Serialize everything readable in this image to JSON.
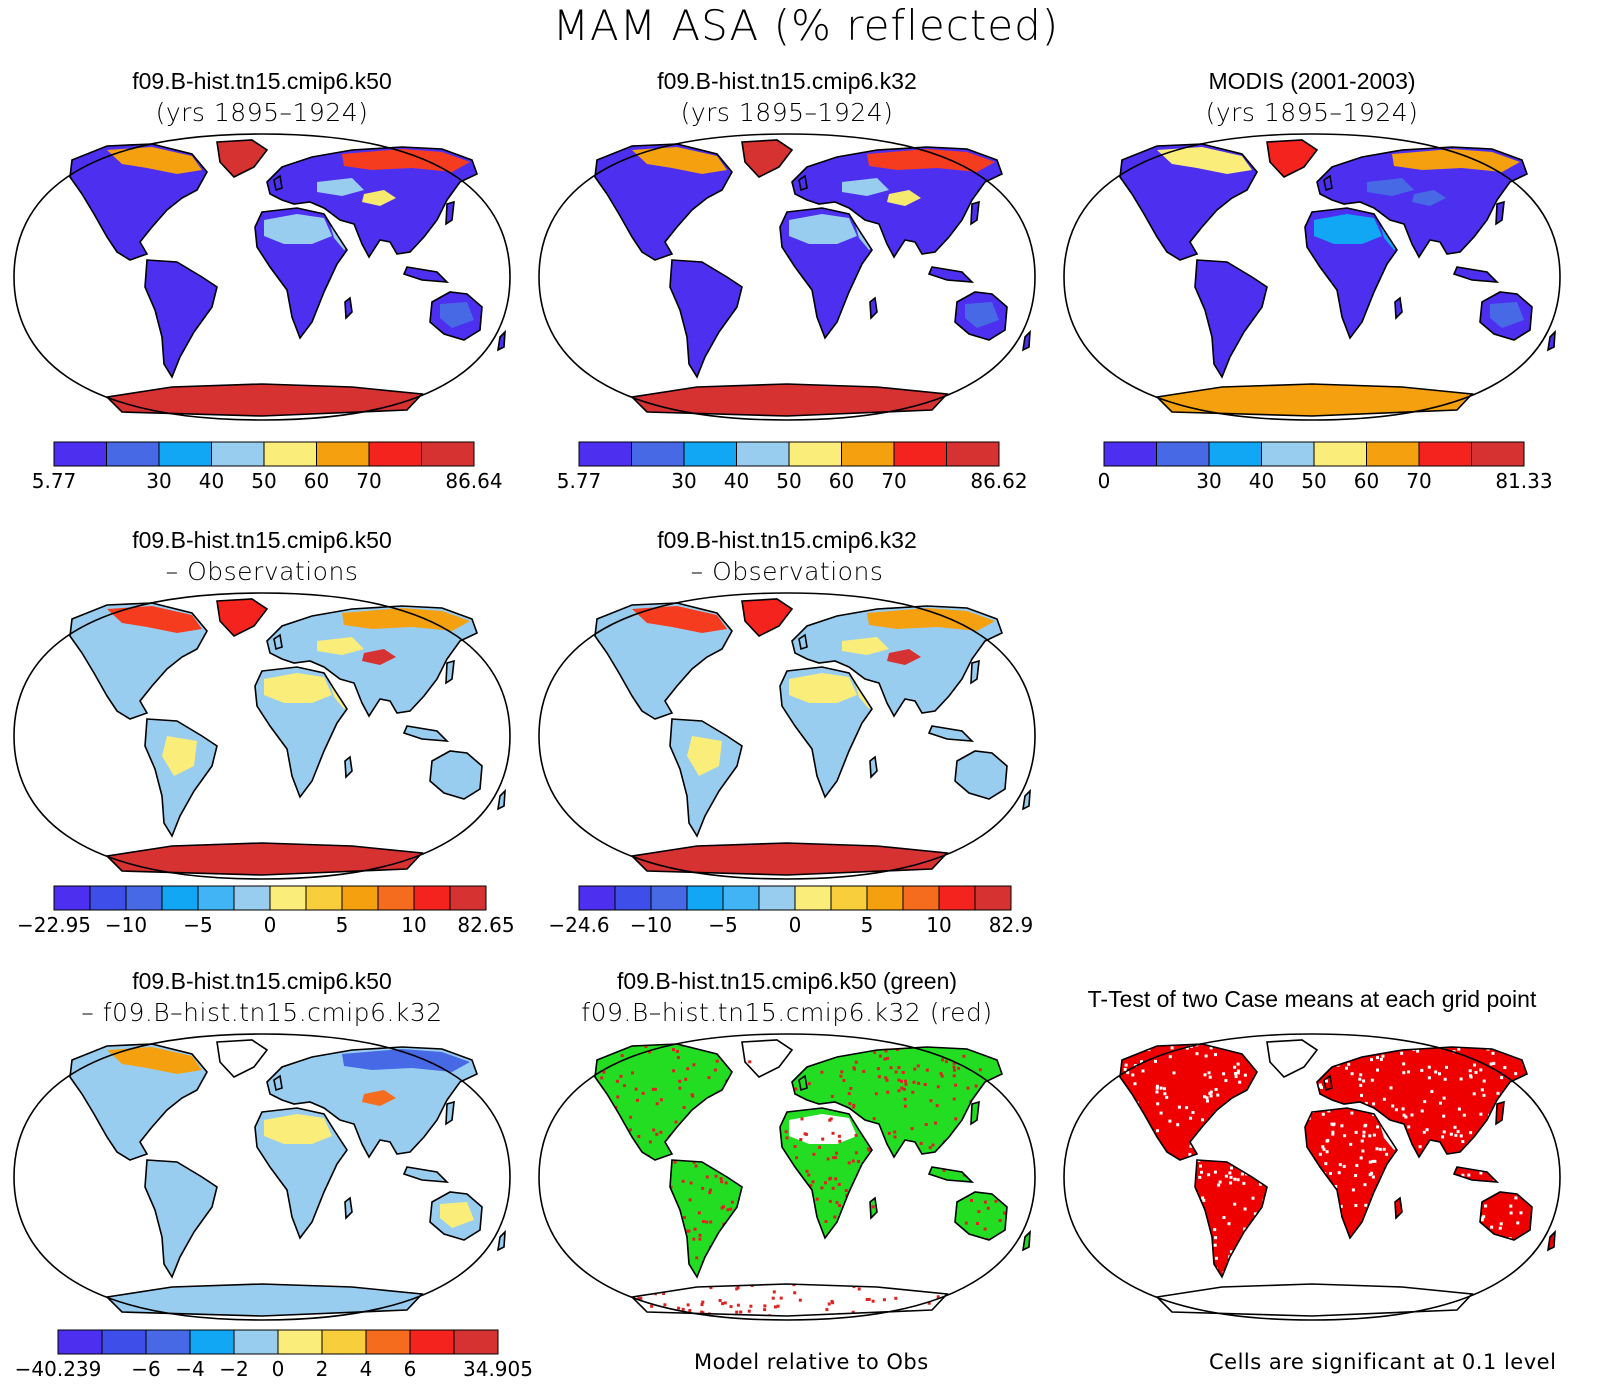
{
  "title": "MAM ASA (% reflected)",
  "panels": [
    {
      "id": "p1",
      "title_line1": "f09.B-hist.tn15.cmip6.k50",
      "title_line2": "(yrs 1895–1924)",
      "land_color": "#4d2ff0",
      "fills": [
        {
          "region": "greenland",
          "color": "#d73232"
        },
        {
          "region": "antarctica",
          "color": "#d73232"
        },
        {
          "region": "sahara",
          "color": "#99cdf0"
        },
        {
          "region": "arabia",
          "color": "#99cdf0"
        },
        {
          "region": "siberia",
          "color": "#f53c1e"
        },
        {
          "region": "canada-north",
          "color": "#f5a00f"
        },
        {
          "region": "tibet",
          "color": "#f5ea6e"
        },
        {
          "region": "central-asia",
          "color": "#99cdf0"
        },
        {
          "region": "australia-interior",
          "color": "#4769e6"
        }
      ],
      "colorbar": {
        "colors": [
          "#4d2ff0",
          "#4769e6",
          "#11a7f5",
          "#99cdf0",
          "#fbed7a",
          "#f5a00f",
          "#f5231e",
          "#d73232"
        ],
        "labels": [
          {
            "index": 0,
            "text": "5.77"
          },
          {
            "index": 2,
            "text": "30"
          },
          {
            "index": 3,
            "text": "40"
          },
          {
            "index": 4,
            "text": "50"
          },
          {
            "index": 5,
            "text": "60"
          },
          {
            "index": 6,
            "text": "70"
          },
          {
            "index": 8,
            "text": "86.64"
          }
        ]
      }
    },
    {
      "id": "p2",
      "title_line1": "f09.B-hist.tn15.cmip6.k32",
      "title_line2": "(yrs 1895–1924)",
      "land_color": "#4d2ff0",
      "fills": [
        {
          "region": "greenland",
          "color": "#d73232"
        },
        {
          "region": "antarctica",
          "color": "#d73232"
        },
        {
          "region": "sahara",
          "color": "#99cdf0"
        },
        {
          "region": "arabia",
          "color": "#99cdf0"
        },
        {
          "region": "siberia",
          "color": "#f53c1e"
        },
        {
          "region": "canada-north",
          "color": "#f5a00f"
        },
        {
          "region": "tibet",
          "color": "#f5ea6e"
        },
        {
          "region": "central-asia",
          "color": "#99cdf0"
        },
        {
          "region": "australia-interior",
          "color": "#4769e6"
        }
      ],
      "colorbar": {
        "colors": [
          "#4d2ff0",
          "#4769e6",
          "#11a7f5",
          "#99cdf0",
          "#fbed7a",
          "#f5a00f",
          "#f5231e",
          "#d73232"
        ],
        "labels": [
          {
            "index": 0,
            "text": "5.77"
          },
          {
            "index": 2,
            "text": "30"
          },
          {
            "index": 3,
            "text": "40"
          },
          {
            "index": 4,
            "text": "50"
          },
          {
            "index": 5,
            "text": "60"
          },
          {
            "index": 6,
            "text": "70"
          },
          {
            "index": 8,
            "text": "86.62"
          }
        ]
      }
    },
    {
      "id": "p3",
      "title_line1": "MODIS (2001-2003)",
      "title_line2": "(yrs 1895–1924)",
      "land_color": "#4d2ff0",
      "fills": [
        {
          "region": "greenland",
          "color": "#f5231e"
        },
        {
          "region": "antarctica",
          "color": "#f5a00f"
        },
        {
          "region": "sahara",
          "color": "#11a7f5"
        },
        {
          "region": "arabia",
          "color": "#11a7f5"
        },
        {
          "region": "siberia",
          "color": "#f5a00f"
        },
        {
          "region": "canada-north",
          "color": "#fbed7a"
        },
        {
          "region": "tibet",
          "color": "#4769e6"
        },
        {
          "region": "central-asia",
          "color": "#4769e6"
        },
        {
          "region": "australia-interior",
          "color": "#4769e6"
        }
      ],
      "colorbar": {
        "colors": [
          "#4d2ff0",
          "#4769e6",
          "#11a7f5",
          "#99cdf0",
          "#fbed7a",
          "#f5a00f",
          "#f5231e",
          "#d73232"
        ],
        "labels": [
          {
            "index": 0,
            "text": "0"
          },
          {
            "index": 2,
            "text": "30"
          },
          {
            "index": 3,
            "text": "40"
          },
          {
            "index": 4,
            "text": "50"
          },
          {
            "index": 5,
            "text": "60"
          },
          {
            "index": 6,
            "text": "70"
          },
          {
            "index": 8,
            "text": "81.33"
          }
        ]
      }
    },
    {
      "id": "p4",
      "title_line1": "f09.B-hist.tn15.cmip6.k50",
      "title_line2": "– Observations",
      "land_color": "#99cdf0",
      "fills": [
        {
          "region": "greenland",
          "color": "#f5231e"
        },
        {
          "region": "antarctica",
          "color": "#d73232"
        },
        {
          "region": "sahara",
          "color": "#fbed7a"
        },
        {
          "region": "arabia",
          "color": "#fbed7a"
        },
        {
          "region": "siberia",
          "color": "#f5a00f"
        },
        {
          "region": "canada-north",
          "color": "#f53c1e"
        },
        {
          "region": "tibet",
          "color": "#d73232"
        },
        {
          "region": "central-asia",
          "color": "#fbed7a"
        },
        {
          "region": "south-america-core",
          "color": "#fbed7a"
        },
        {
          "region": "australia-interior",
          "color": "#99cdf0"
        }
      ],
      "colorbar": {
        "colors": [
          "#4d2ff0",
          "#3d4fe8",
          "#4769e6",
          "#11a7f5",
          "#40b4f5",
          "#99cdf0",
          "#fbed7a",
          "#f9ce3c",
          "#f5a00f",
          "#f56c1e",
          "#f5231e",
          "#d73232"
        ],
        "labels": [
          {
            "index": 0,
            "text": "−22.95"
          },
          {
            "index": 2,
            "text": "−10"
          },
          {
            "index": 4,
            "text": "−5"
          },
          {
            "index": 6,
            "text": "0"
          },
          {
            "index": 8,
            "text": "5"
          },
          {
            "index": 10,
            "text": "10"
          },
          {
            "index": 12,
            "text": "82.65"
          }
        ]
      }
    },
    {
      "id": "p5",
      "title_line1": "f09.B-hist.tn15.cmip6.k32",
      "title_line2": "– Observations",
      "land_color": "#99cdf0",
      "fills": [
        {
          "region": "greenland",
          "color": "#f5231e"
        },
        {
          "region": "antarctica",
          "color": "#d73232"
        },
        {
          "region": "sahara",
          "color": "#fbed7a"
        },
        {
          "region": "arabia",
          "color": "#fbed7a"
        },
        {
          "region": "siberia",
          "color": "#f5a00f"
        },
        {
          "region": "canada-north",
          "color": "#f53c1e"
        },
        {
          "region": "tibet",
          "color": "#d73232"
        },
        {
          "region": "central-asia",
          "color": "#fbed7a"
        },
        {
          "region": "south-america-core",
          "color": "#fbed7a"
        },
        {
          "region": "australia-interior",
          "color": "#99cdf0"
        }
      ],
      "colorbar": {
        "colors": [
          "#4d2ff0",
          "#3d4fe8",
          "#4769e6",
          "#11a7f5",
          "#40b4f5",
          "#99cdf0",
          "#fbed7a",
          "#f9ce3c",
          "#f5a00f",
          "#f56c1e",
          "#f5231e",
          "#d73232"
        ],
        "labels": [
          {
            "index": 0,
            "text": "−24.6"
          },
          {
            "index": 2,
            "text": "−10"
          },
          {
            "index": 4,
            "text": "−5"
          },
          {
            "index": 6,
            "text": "0"
          },
          {
            "index": 8,
            "text": "5"
          },
          {
            "index": 10,
            "text": "10"
          },
          {
            "index": 12,
            "text": "82.9"
          }
        ]
      }
    },
    {
      "id": "p7",
      "title_line1": "f09.B-hist.tn15.cmip6.k50",
      "title_line2": "– f09.B–hist.tn15.cmip6.k32",
      "land_color": "#99cdf0",
      "fills": [
        {
          "region": "greenland",
          "color": "#ffffff"
        },
        {
          "region": "antarctica",
          "color": "#99cdf0"
        },
        {
          "region": "sahara",
          "color": "#fbed7a"
        },
        {
          "region": "siberia",
          "color": "#4769e6"
        },
        {
          "region": "canada-north",
          "color": "#f5a00f"
        },
        {
          "region": "tibet",
          "color": "#f56c1e"
        },
        {
          "region": "south-america-core",
          "color": "#99cdf0"
        },
        {
          "region": "australia-interior",
          "color": "#fbed7a"
        }
      ],
      "colorbar": {
        "colors": [
          "#4d2ff0",
          "#3d4fe8",
          "#4769e6",
          "#11a7f5",
          "#99cdf0",
          "#fbed7a",
          "#f9ce3c",
          "#f56c1e",
          "#f5231e",
          "#d73232"
        ],
        "labels": [
          {
            "index": 0,
            "text": "−40.239"
          },
          {
            "index": 2,
            "text": "−6"
          },
          {
            "index": 3,
            "text": "−4"
          },
          {
            "index": 4,
            "text": "−2"
          },
          {
            "index": 5,
            "text": "0"
          },
          {
            "index": 6,
            "text": "2"
          },
          {
            "index": 7,
            "text": "4"
          },
          {
            "index": 8,
            "text": "6"
          },
          {
            "index": 10,
            "text": "34.905"
          }
        ]
      }
    },
    {
      "id": "p8",
      "title_line1": "f09.B-hist.tn15.cmip6.k50 (green)",
      "title_line2": "f09.B–hist.tn15.cmip6.k32 (red)",
      "land_color": "#22dd22",
      "dots": "#dd2222",
      "fills": [
        {
          "region": "greenland",
          "color": "#ffffff"
        },
        {
          "region": "antarctica",
          "color": "#ffffff"
        },
        {
          "region": "sahara",
          "color": "#ffffff"
        }
      ],
      "footnote": "Model relative to Obs"
    },
    {
      "id": "p9",
      "title_line1": "T-Test of two Case means at each grid point",
      "title_line2": "",
      "land_color": "#ee0000",
      "dots": "#ffffff",
      "fills": [
        {
          "region": "greenland",
          "color": "#ffffff"
        },
        {
          "region": "antarctica",
          "color": "#ffffff"
        },
        {
          "region": "arabia",
          "color": "#ffffff"
        }
      ],
      "footnote": "Cells are significant at 0.1 level"
    }
  ]
}
